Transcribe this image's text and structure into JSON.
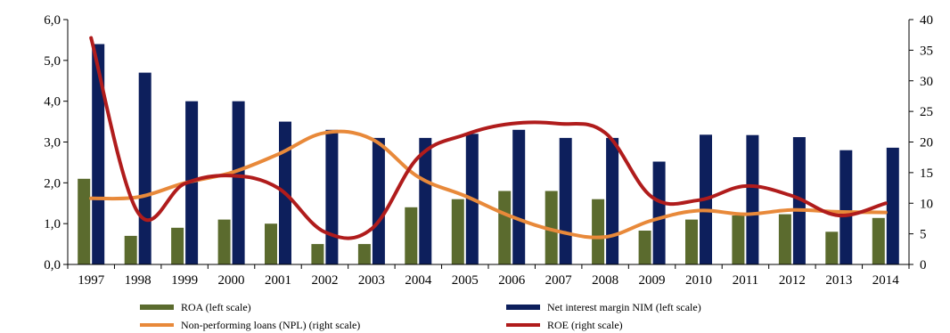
{
  "chart_data": {
    "type": "bar",
    "title": "",
    "categories": [
      "1997",
      "1998",
      "1999",
      "2000",
      "2001",
      "2002",
      "2003",
      "2004",
      "2005",
      "2006",
      "2007",
      "2008",
      "2009",
      "2010",
      "2011",
      "2012",
      "2013",
      "2014"
    ],
    "left_axis": {
      "ylim": [
        0,
        6
      ],
      "ticks": [
        "0,0",
        "1,0",
        "2,0",
        "3,0",
        "4,0",
        "5,0",
        "6,0"
      ],
      "tick_values": [
        0,
        1,
        2,
        3,
        4,
        5,
        6
      ]
    },
    "right_axis": {
      "ylim": [
        0,
        40
      ],
      "ticks": [
        "0",
        "5",
        "10",
        "15",
        "20",
        "25",
        "30",
        "35",
        "40"
      ],
      "tick_values": [
        0,
        5,
        10,
        15,
        20,
        25,
        30,
        35,
        40
      ]
    },
    "series": [
      {
        "name": "ROA (left scale)",
        "type": "bar",
        "axis": "left",
        "color": "#5b6b2e",
        "values": [
          2.1,
          0.7,
          0.9,
          1.1,
          1.0,
          0.5,
          0.5,
          1.4,
          1.6,
          1.8,
          1.8,
          1.6,
          0.83,
          1.1,
          1.2,
          1.23,
          0.8,
          1.14
        ]
      },
      {
        "name": "Net interest margin NIM (left scale)",
        "type": "bar",
        "axis": "left",
        "color": "#0d1f5c",
        "values": [
          5.4,
          4.7,
          4.0,
          4.0,
          3.5,
          3.3,
          3.1,
          3.1,
          3.2,
          3.3,
          3.1,
          3.1,
          2.52,
          3.18,
          3.17,
          3.12,
          2.8,
          2.86
        ]
      },
      {
        "name": "Non-performing loans (NPL) (right scale)",
        "type": "line",
        "axis": "right",
        "color": "#e8893a",
        "values": [
          10.8,
          11.0,
          13.3,
          15.0,
          18.0,
          21.5,
          20.5,
          14.3,
          11.2,
          7.8,
          5.4,
          4.5,
          7.2,
          8.8,
          8.2,
          8.9,
          8.6,
          8.5
        ]
      },
      {
        "name": "ROE (right scale)",
        "type": "line",
        "axis": "right",
        "color": "#b01c1c",
        "values": [
          37.0,
          8.5,
          13.2,
          14.5,
          12.5,
          5.3,
          5.8,
          17.5,
          21.2,
          23.0,
          23.0,
          21.5,
          11.0,
          10.5,
          12.8,
          11.2,
          8.0,
          10.0
        ]
      }
    ],
    "legend": {
      "placement": "bottom",
      "entries": [
        "ROA (left scale)",
        "Net interest margin NIM (left scale)",
        "Non-performing loans (NPL) (right scale)",
        "ROE (right scale)"
      ]
    },
    "grid": false
  }
}
